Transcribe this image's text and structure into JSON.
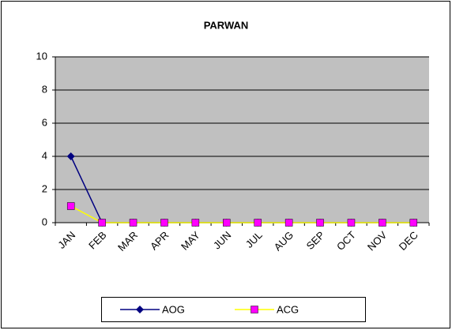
{
  "chart_data": {
    "type": "line",
    "title": "PARWAN",
    "categories": [
      "JAN",
      "FEB",
      "MAR",
      "APR",
      "MAY",
      "JUN",
      "JUL",
      "AUG",
      "SEP",
      "OCT",
      "NOV",
      "DEC"
    ],
    "series": [
      {
        "name": "AOG",
        "color": "#000080",
        "marker": "diamond",
        "marker_color": "#000080",
        "values": [
          4,
          0,
          0,
          0,
          0,
          0,
          0,
          0,
          0,
          0,
          0,
          0
        ]
      },
      {
        "name": "ACG",
        "color": "#ffff00",
        "marker": "square",
        "marker_color": "#ff00ff",
        "values": [
          1,
          0,
          0,
          0,
          0,
          0,
          0,
          0,
          0,
          0,
          0,
          0
        ]
      }
    ],
    "ylim": [
      0,
      10
    ],
    "yticks": [
      0,
      2,
      4,
      6,
      8,
      10
    ],
    "grid": true,
    "plot_background": "#c0c0c0",
    "legend": "bottom"
  }
}
